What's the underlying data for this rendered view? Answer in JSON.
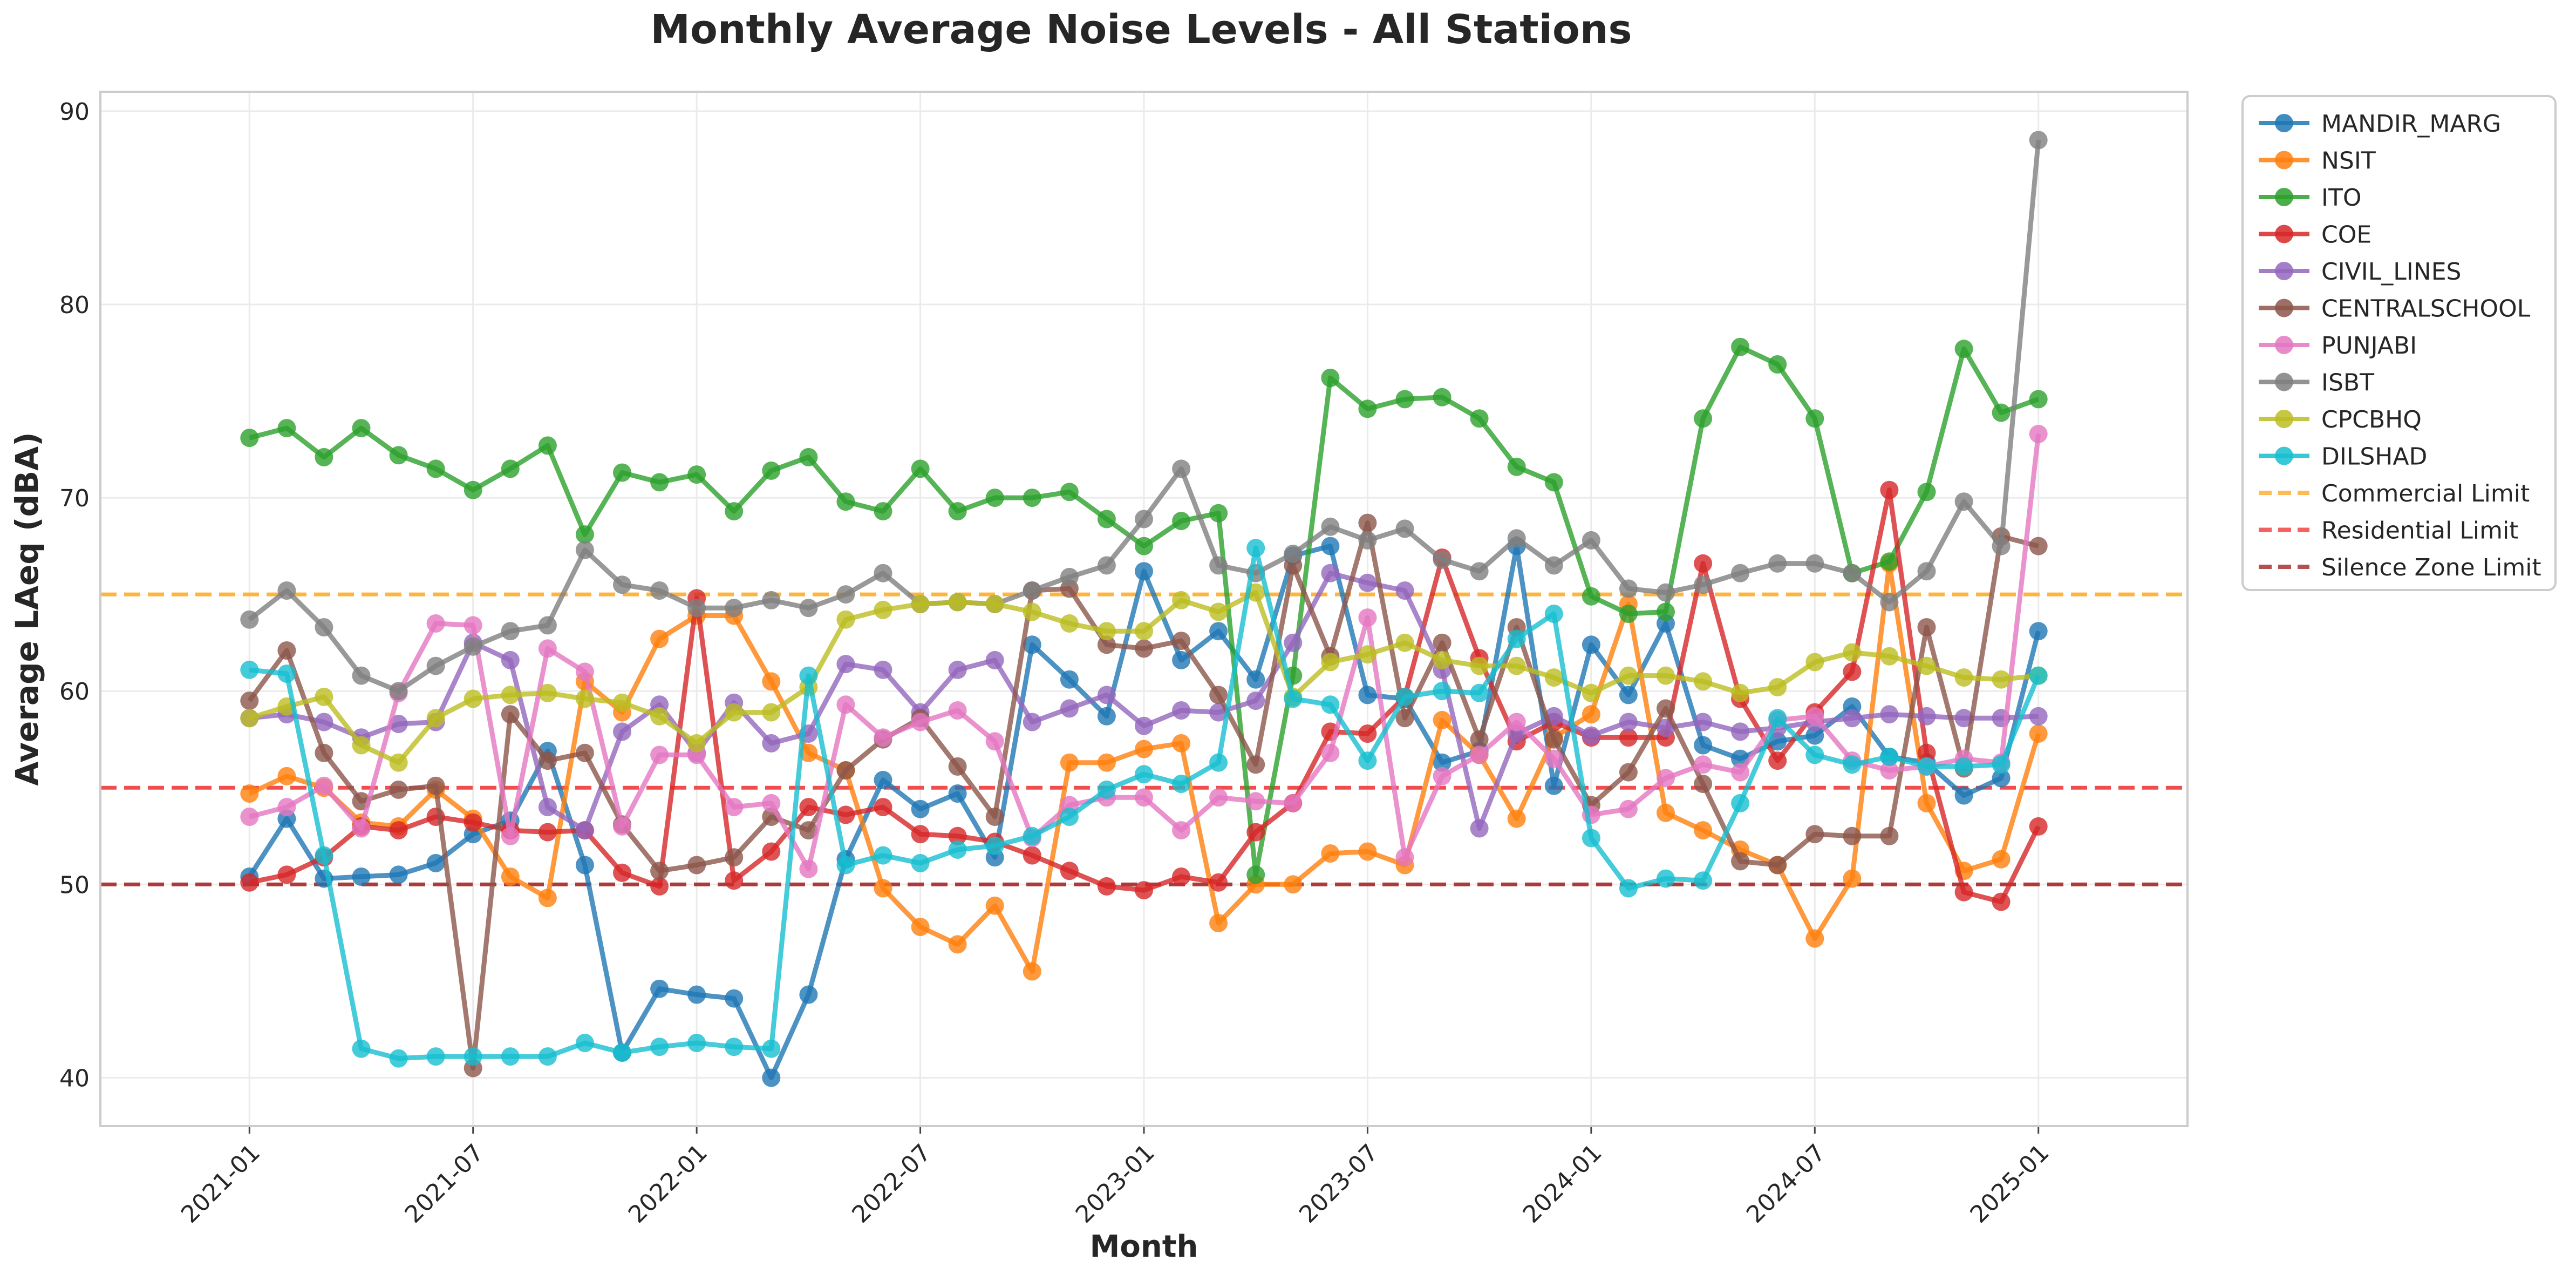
{
  "chart_data": {
    "type": "line",
    "title": "Monthly Average Noise Levels - All Stations",
    "xlabel": "Month",
    "ylabel": "Average LAeq (dBA)",
    "x_start": "2021-01",
    "x_end": "2025-01",
    "xlim": [
      "2020-09",
      "2025-05"
    ],
    "x_ticks": [
      "2021-01",
      "2021-07",
      "2022-01",
      "2022-07",
      "2023-01",
      "2023-07",
      "2024-01",
      "2024-07",
      "2025-01"
    ],
    "ylim": [
      37.5,
      91
    ],
    "y_ticks": [
      40,
      50,
      60,
      70,
      80,
      90
    ],
    "grid": true,
    "legend_position": "outside-top-right",
    "series": [
      {
        "name": "MANDIR_MARG",
        "color": "#1f77b4",
        "values": [
          50.4,
          53.4,
          50.3,
          50.4,
          50.5,
          51.1,
          52.6,
          53.3,
          56.9,
          51.0,
          41.3,
          44.6,
          44.3,
          44.1,
          40.0,
          44.3,
          51.3,
          55.4,
          53.9,
          54.7,
          51.4,
          62.4,
          60.6,
          58.7,
          66.2,
          61.6,
          63.1,
          60.6,
          67.0,
          67.5,
          59.8,
          59.6,
          56.3,
          56.9,
          67.5,
          55.1,
          62.4,
          59.8,
          63.5,
          57.2,
          56.5,
          57.4,
          57.7,
          59.2,
          56.6,
          56.3,
          54.6,
          55.5,
          63.1
        ]
      },
      {
        "name": "NSIT",
        "color": "#ff7f0e",
        "values": [
          54.7,
          55.6,
          55.0,
          53.2,
          53.0,
          54.9,
          53.4,
          50.4,
          49.3,
          60.5,
          58.9,
          62.7,
          63.9,
          63.9,
          60.5,
          56.8,
          55.9,
          49.8,
          47.8,
          46.9,
          48.9,
          45.5,
          56.3,
          56.3,
          57.0,
          57.3,
          48.0,
          50.0,
          50.0,
          51.6,
          51.7,
          51.0,
          58.5,
          56.7,
          53.4,
          57.6,
          58.8,
          64.5,
          53.7,
          52.8,
          51.8,
          51.0,
          47.2,
          50.3,
          66.6,
          54.2,
          50.7,
          51.3,
          57.8
        ]
      },
      {
        "name": "ITO",
        "color": "#2ca02c",
        "values": [
          73.1,
          73.6,
          72.1,
          73.6,
          72.2,
          71.5,
          70.4,
          71.5,
          72.7,
          68.1,
          71.3,
          70.8,
          71.2,
          69.3,
          71.4,
          72.1,
          69.8,
          69.3,
          71.5,
          69.3,
          70.0,
          70.0,
          70.3,
          68.9,
          67.5,
          68.8,
          69.2,
          50.5,
          60.8,
          76.2,
          74.6,
          75.1,
          75.2,
          74.1,
          71.6,
          70.8,
          64.9,
          64.0,
          64.1,
          74.1,
          77.8,
          76.9,
          74.1,
          66.1,
          66.7,
          70.3,
          77.7,
          74.4,
          75.1
        ]
      },
      {
        "name": "COE",
        "color": "#d62728",
        "values": [
          50.1,
          50.5,
          51.4,
          53.0,
          52.8,
          53.5,
          53.2,
          52.8,
          52.7,
          52.8,
          50.6,
          49.9,
          64.8,
          50.2,
          51.7,
          54.0,
          53.6,
          54.0,
          52.6,
          52.5,
          52.2,
          51.5,
          50.7,
          49.9,
          49.7,
          50.4,
          50.1,
          52.7,
          54.2,
          57.9,
          57.8,
          59.7,
          66.9,
          61.7,
          57.4,
          58.4,
          57.6,
          57.6,
          57.6,
          66.6,
          59.6,
          56.4,
          58.9,
          61.0,
          70.4,
          56.8,
          49.6,
          49.1,
          53.0
        ]
      },
      {
        "name": "CIVIL_LINES",
        "color": "#9467bd",
        "values": [
          58.6,
          58.8,
          58.4,
          57.6,
          58.3,
          58.4,
          62.5,
          61.6,
          54.0,
          52.8,
          57.9,
          59.3,
          56.8,
          59.4,
          57.3,
          57.8,
          61.4,
          61.1,
          58.9,
          61.1,
          61.6,
          58.4,
          59.1,
          59.8,
          58.2,
          59.0,
          58.9,
          59.5,
          62.5,
          66.1,
          65.6,
          65.2,
          61.1,
          52.9,
          57.8,
          58.7,
          57.7,
          58.4,
          58.1,
          58.4,
          57.9,
          58.1,
          58.4,
          58.6,
          58.8,
          58.7,
          58.6,
          58.6,
          58.7
        ]
      },
      {
        "name": "CENTRALSCHOOL",
        "color": "#8c564b",
        "values": [
          59.5,
          62.1,
          56.8,
          54.3,
          54.9,
          55.1,
          40.5,
          58.8,
          56.4,
          56.8,
          53.1,
          50.7,
          51.0,
          51.4,
          53.5,
          52.8,
          55.9,
          57.5,
          58.6,
          56.1,
          53.5,
          65.2,
          65.3,
          62.4,
          62.2,
          62.6,
          59.8,
          56.2,
          66.5,
          61.8,
          68.7,
          58.6,
          62.5,
          57.5,
          63.3,
          57.5,
          54.1,
          55.8,
          59.1,
          55.2,
          51.2,
          51.0,
          52.6,
          52.5,
          52.5,
          63.3,
          56.0,
          68.0,
          67.5
        ]
      },
      {
        "name": "PUNJABI",
        "color": "#e377c2",
        "values": [
          53.5,
          54.0,
          55.1,
          52.9,
          59.9,
          63.5,
          63.4,
          52.5,
          62.2,
          61.0,
          53.0,
          56.7,
          56.7,
          54.0,
          54.2,
          50.8,
          59.3,
          57.6,
          58.4,
          59.0,
          57.4,
          52.4,
          54.1,
          54.5,
          54.5,
          52.8,
          54.5,
          54.3,
          54.2,
          56.8,
          63.8,
          51.4,
          55.6,
          56.7,
          58.4,
          56.5,
          53.6,
          53.9,
          55.5,
          56.2,
          55.8,
          58.5,
          58.7,
          56.4,
          55.9,
          56.1,
          56.5,
          56.3,
          73.3
        ]
      },
      {
        "name": "ISBT",
        "color": "#7f7f7f",
        "values": [
          63.7,
          65.2,
          63.3,
          60.8,
          60.0,
          61.3,
          62.3,
          63.1,
          63.4,
          67.3,
          65.5,
          65.2,
          64.3,
          64.3,
          64.7,
          64.3,
          65.0,
          66.1,
          64.5,
          64.6,
          64.5,
          65.2,
          65.9,
          66.5,
          68.9,
          71.5,
          66.5,
          66.1,
          67.1,
          68.5,
          67.8,
          68.4,
          66.8,
          66.2,
          67.9,
          66.5,
          67.8,
          65.3,
          65.1,
          65.5,
          66.1,
          66.6,
          66.6,
          66.1,
          64.6,
          66.2,
          69.8,
          67.5,
          88.5
        ]
      },
      {
        "name": "CPCBHQ",
        "color": "#bcbd22",
        "values": [
          58.6,
          59.2,
          59.7,
          57.2,
          56.3,
          58.6,
          59.6,
          59.8,
          59.9,
          59.6,
          59.4,
          58.7,
          57.3,
          58.9,
          58.9,
          60.2,
          63.7,
          64.2,
          64.5,
          64.6,
          64.5,
          64.1,
          63.5,
          63.1,
          63.1,
          64.7,
          64.1,
          65.1,
          59.7,
          61.5,
          61.9,
          62.5,
          61.6,
          61.3,
          61.3,
          60.7,
          59.9,
          60.8,
          60.8,
          60.5,
          59.9,
          60.2,
          61.5,
          62.0,
          61.8,
          61.3,
          60.7,
          60.6,
          60.8
        ]
      },
      {
        "name": "DILSHAD",
        "color": "#17becf",
        "values": [
          61.1,
          60.9,
          51.5,
          41.5,
          41.0,
          41.1,
          41.1,
          41.1,
          41.1,
          41.8,
          41.3,
          41.6,
          41.8,
          41.6,
          41.5,
          60.8,
          51.0,
          51.5,
          51.1,
          51.8,
          52.0,
          52.5,
          53.5,
          54.9,
          55.7,
          55.2,
          56.3,
          67.4,
          59.6,
          59.3,
          56.4,
          59.7,
          60.0,
          59.9,
          62.7,
          64.0,
          52.4,
          49.8,
          50.3,
          50.2,
          54.2,
          58.6,
          56.7,
          56.2,
          56.6,
          56.1,
          56.1,
          56.2,
          60.8
        ]
      }
    ],
    "reference_lines": [
      {
        "name": "Commercial Limit",
        "value": 65,
        "color": "#ffb033"
      },
      {
        "name": "Residential Limit",
        "value": 55,
        "color": "#f04545"
      },
      {
        "name": "Silence Zone Limit",
        "value": 50,
        "color": "#a83232"
      }
    ]
  }
}
